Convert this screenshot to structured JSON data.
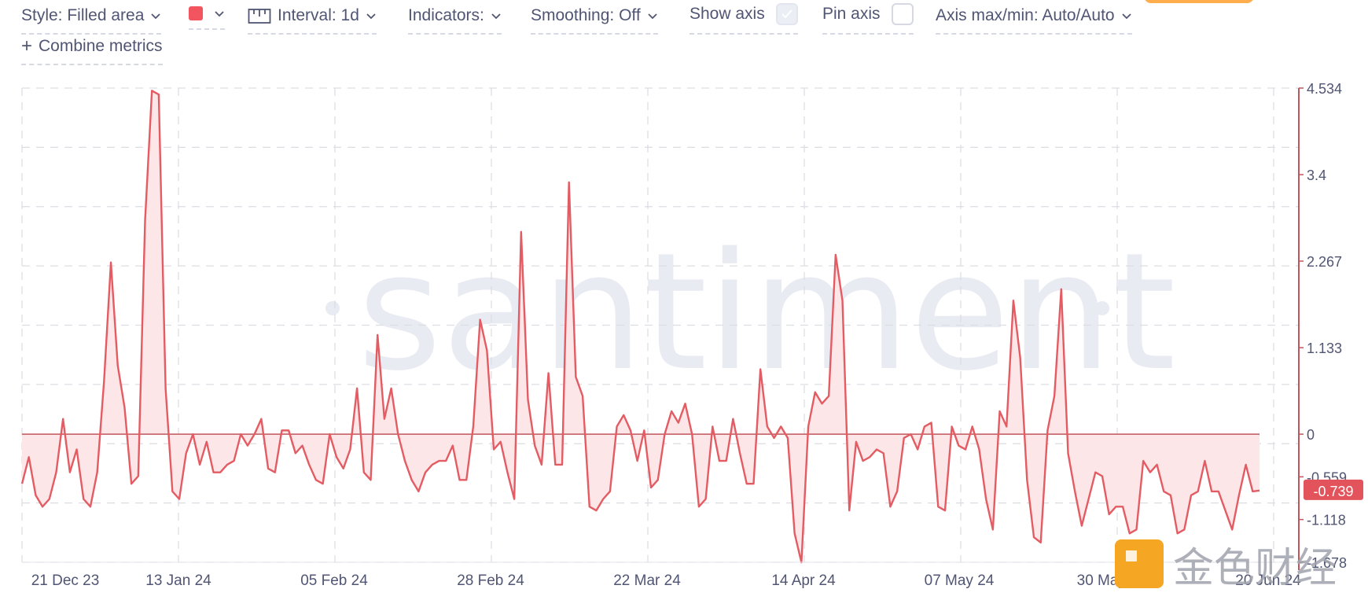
{
  "toolbar": {
    "style_label": "Style: Filled area",
    "color_hex": "#f25560",
    "interval_label": "Interval: 1d",
    "indicators_label": "Indicators:",
    "smoothing_label": "Smoothing: Off",
    "show_axis_label": "Show axis",
    "show_axis_checked": true,
    "pin_axis_label": "Pin axis",
    "pin_axis_checked": false,
    "axis_label": "Axis max/min: Auto/Auto",
    "combine_label": "Combine metrics"
  },
  "watermark": {
    "brand": "santiment",
    "corner_text": "金色财经"
  },
  "colors": {
    "line": "#e35c63",
    "fill": "#fde6e7",
    "zero_line": "#c0555b",
    "grid": "#dcdde3",
    "axis_line": "#c0555b",
    "label": "#505573",
    "badge": "#e2535b"
  },
  "chart_data": {
    "type": "area",
    "x_start": "2023-12-18",
    "x_ticks": [
      "21 Dec 23",
      "13 Jan 24",
      "05 Feb 24",
      "28 Feb 24",
      "22 Mar 24",
      "14 Apr 24",
      "07 May 24",
      "30 May 24",
      "20 Jun 24"
    ],
    "y_ticks": [
      "4.534",
      "3.4",
      "2.267",
      "1.133",
      "0",
      "-0.559",
      "-1.118",
      "-1.678"
    ],
    "ylim": [
      -1.678,
      4.534
    ],
    "current_value": "-0.739",
    "grid": true,
    "values": [
      -0.65,
      -0.3,
      -0.8,
      -0.95,
      -0.85,
      -0.5,
      0.2,
      -0.5,
      -0.2,
      -0.85,
      -0.95,
      -0.5,
      0.7,
      2.25,
      0.9,
      0.35,
      -0.65,
      -0.55,
      2.8,
      4.5,
      4.45,
      0.6,
      -0.75,
      -0.85,
      -0.25,
      0.0,
      -0.4,
      -0.1,
      -0.5,
      -0.5,
      -0.4,
      -0.35,
      0.0,
      -0.15,
      0.0,
      0.2,
      -0.45,
      -0.5,
      0.05,
      0.05,
      -0.25,
      -0.15,
      -0.4,
      -0.6,
      -0.65,
      0.0,
      -0.3,
      -0.45,
      -0.2,
      0.6,
      -0.5,
      -0.6,
      1.3,
      0.2,
      0.6,
      0.0,
      -0.35,
      -0.6,
      -0.75,
      -0.5,
      -0.4,
      -0.35,
      -0.35,
      -0.15,
      -0.6,
      -0.6,
      0.1,
      1.5,
      1.1,
      -0.2,
      -0.1,
      -0.5,
      -0.85,
      2.65,
      0.45,
      -0.15,
      -0.4,
      0.8,
      -0.4,
      -0.4,
      3.3,
      0.75,
      0.5,
      -0.95,
      -1.0,
      -0.85,
      -0.75,
      0.1,
      0.25,
      0.05,
      -0.35,
      0.05,
      -0.7,
      -0.6,
      0.0,
      0.3,
      0.15,
      0.4,
      -0.0,
      -0.95,
      -0.85,
      0.1,
      -0.35,
      -0.35,
      0.2,
      -0.25,
      -0.65,
      -0.65,
      0.85,
      0.1,
      -0.05,
      0.1,
      -0.05,
      -1.3,
      -1.68,
      0.1,
      0.55,
      0.4,
      0.5,
      2.35,
      1.75,
      -1.0,
      -0.1,
      -0.35,
      -0.3,
      -0.2,
      -0.25,
      -0.95,
      -0.75,
      -0.05,
      0.0,
      -0.2,
      0.1,
      0.15,
      -0.95,
      -1.0,
      0.1,
      -0.15,
      -0.2,
      0.1,
      -0.2,
      -0.85,
      -1.25,
      0.3,
      0.1,
      1.75,
      1.0,
      -0.6,
      -1.35,
      -1.42,
      0.05,
      0.5,
      1.9,
      -0.25,
      -0.75,
      -1.2,
      -0.85,
      -0.5,
      -0.55,
      -1.05,
      -0.95,
      -0.95,
      -1.3,
      -1.25,
      -0.35,
      -0.5,
      -0.4,
      -0.75,
      -0.8,
      -1.3,
      -1.25,
      -0.8,
      -0.75,
      -0.35,
      -0.75,
      -0.75,
      -1.0,
      -1.25,
      -0.8,
      -0.4,
      -0.75,
      -0.739
    ]
  }
}
